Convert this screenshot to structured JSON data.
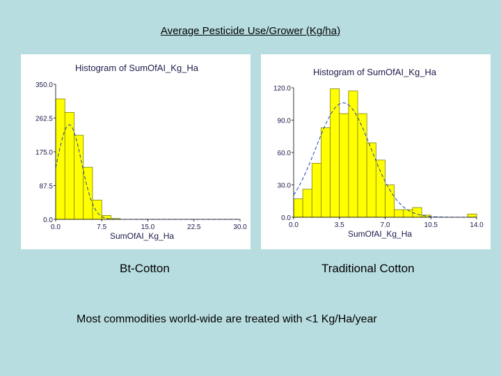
{
  "heading": "Average Pesticide Use/Grower (Kg/ha)",
  "captions": {
    "left": "Bt-Cotton",
    "right": "Traditional Cotton"
  },
  "footnote": "Most commodities world-wide are treated with <1 Kg/Ha/year",
  "colors": {
    "background": "#b8dde0",
    "bar_fill": "#ffff00",
    "bar_stroke": "#808000",
    "curve": "#1f3fbf"
  },
  "chart_data": [
    {
      "type": "bar",
      "title": "Histogram of SumOfAI_Kg_Ha",
      "xlabel": "SumOfAI_Kg_Ha",
      "ylabel": "",
      "xticks": [
        "0.0",
        "7.5",
        "15.0",
        "22.5",
        "30.0"
      ],
      "yticks": [
        "0.0",
        "87.5",
        "175.0",
        "262.5",
        "350.0"
      ],
      "xlim": [
        0,
        30
      ],
      "ylim": [
        0,
        350
      ],
      "bin_width": 1.5,
      "bin_start": 0,
      "values": [
        312,
        277,
        218,
        135,
        50,
        10,
        2
      ],
      "normal_curve": {
        "mean": 2.2,
        "sd": 2.0,
        "peak": 245
      }
    },
    {
      "type": "bar",
      "title": "Histogram of SumOfAI_Kg_Ha",
      "xlabel": "SumOfAI_Kg_Ha",
      "ylabel": "",
      "xticks": [
        "0.0",
        "3.5",
        "7.0",
        "10.5",
        "14.0"
      ],
      "yticks": [
        "0.0",
        "30.0",
        "60.0",
        "90.0",
        "120.0"
      ],
      "xlim": [
        0,
        14
      ],
      "ylim": [
        0,
        120
      ],
      "bin_width": 0.7,
      "bin_start": 0,
      "values": [
        17,
        26,
        50,
        83,
        119,
        96,
        117,
        96,
        69,
        53,
        30,
        7,
        7,
        9,
        2,
        0,
        0,
        0,
        0,
        3
      ],
      "normal_curve": {
        "mean": 3.8,
        "sd": 2.1,
        "peak": 106
      }
    }
  ]
}
